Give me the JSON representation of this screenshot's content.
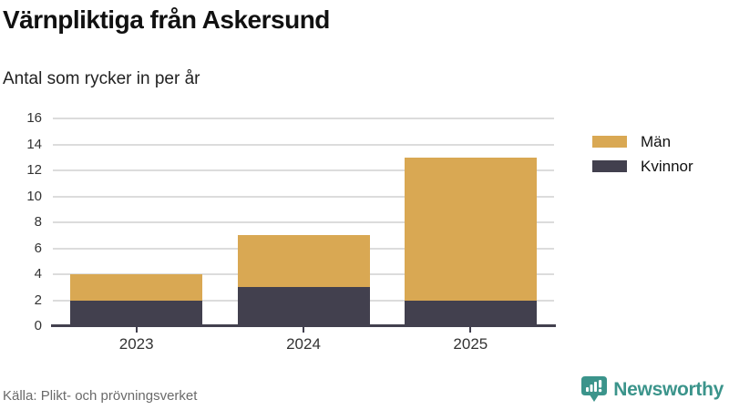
{
  "header": {
    "title": "Värnpliktiga från Askersund",
    "subtitle": "Antal som rycker in per år"
  },
  "chart_data": {
    "type": "bar",
    "stacked": true,
    "categories": [
      "2023",
      "2024",
      "2025"
    ],
    "series": [
      {
        "name": "Kvinnor",
        "color": "#42404E",
        "values": [
          2,
          3,
          2
        ]
      },
      {
        "name": "Män",
        "color": "#D9A853",
        "values": [
          2,
          4,
          11
        ]
      }
    ],
    "totals": [
      4,
      7,
      13
    ],
    "ylim": [
      0,
      16
    ],
    "yticks": [
      0,
      2,
      4,
      6,
      8,
      10,
      12,
      14,
      16
    ],
    "xlabel": "",
    "ylabel": "",
    "grid": true,
    "legend_position": "right",
    "legend": [
      {
        "label": "Män",
        "color": "#D9A853"
      },
      {
        "label": "Kvinnor",
        "color": "#42404E"
      }
    ]
  },
  "footer": {
    "source": "Källa: Plikt- och prövningsverket",
    "brand": "Newsworthy"
  },
  "colors": {
    "men": "#D9A853",
    "women": "#42404E",
    "grid": "#dcdcdc",
    "axis": "#42404E",
    "brand_teal": "#3B948B",
    "title": "#111111",
    "source_text": "#6a6a6a"
  }
}
